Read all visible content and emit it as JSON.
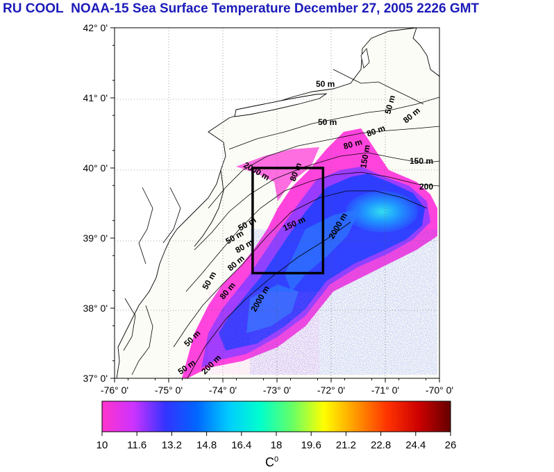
{
  "title": {
    "left": "RU COOL",
    "right": "NOAA-15 Sea Surface Temperature December 27, 2005 2226 GMT"
  },
  "lat_labels": [
    "42° 0'",
    "41° 0'",
    "40° 0'",
    "39° 0'",
    "38° 0'",
    "37° 0'"
  ],
  "lon_labels": [
    "-76° 0'",
    "-75° 0'",
    "-74° 0'",
    "-73° 0'",
    "-72° 0'",
    "-71° 0'",
    "-70° 0'"
  ],
  "isobath_labels": [
    "50 m",
    "50 m",
    "80 m",
    "80 m",
    "80 m",
    "150 m",
    "200",
    "50 m",
    "150 m",
    "2000 m",
    "50 m",
    "50 m",
    "80 m",
    "150 m",
    "2000 m",
    "80 m",
    "50 m",
    "80 m",
    "50 m",
    "200 m",
    "2000 m",
    "80 m",
    "50 m"
  ],
  "colorbar": {
    "ticks": [
      "10",
      "11.6",
      "13.2",
      "14.8",
      "16.4",
      "18",
      "19.6",
      "21.2",
      "22.8",
      "24.4",
      "26"
    ],
    "unit_base": "C",
    "unit_sup": "0",
    "colors": [
      "#ff33cc",
      "#cc33ff",
      "#3333ff",
      "#0066ff",
      "#00ccff",
      "#00ffcc",
      "#66ff66",
      "#ffff00",
      "#ff9900",
      "#ff3300",
      "#cc0000",
      "#660000"
    ]
  },
  "colors": {
    "title": "#1a1ab8",
    "land": "#ffffff",
    "ocean_bg": "#fcfcf6",
    "box": "#000000"
  },
  "study_box": {
    "lon_min": -73.45,
    "lon_max": -72.15,
    "lat_min": 38.5,
    "lat_max": 40.0
  }
}
